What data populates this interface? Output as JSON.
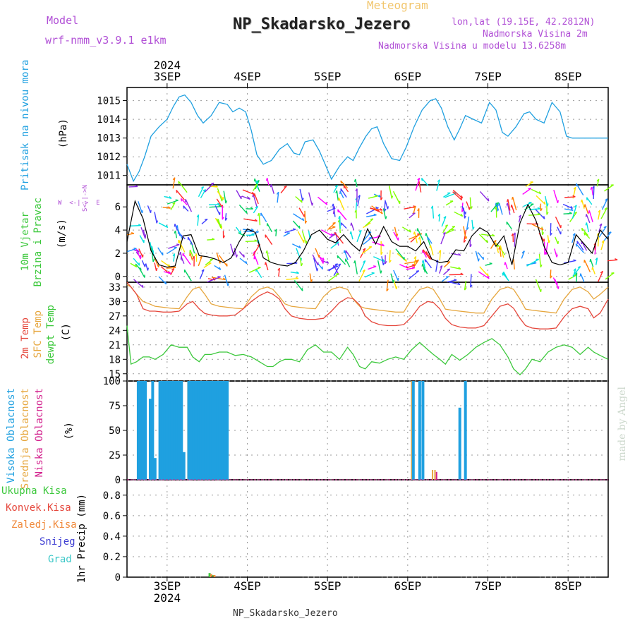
{
  "header": {
    "meteogram_label": "Meteogram",
    "model_label": "Model",
    "model_value": "wrf-nmm_v3.9.1 e1km",
    "station": "NP_Skadarsko_Jezero",
    "lonlat": "lon,lat (19.15E, 42.2812N)",
    "altitude": "Nadmorska Visina 2m",
    "model_altitude": "Nadmorska Visina u modelu 13.6258m",
    "footer_station": "NP_Skadarsko_Jezero",
    "watermark": "made by Angel"
  },
  "time_axis": {
    "year": "2024",
    "day_labels": [
      "3SEP",
      "4SEP",
      "5SEP",
      "6SEP",
      "7SEP",
      "8SEP"
    ],
    "day_positions": [
      3,
      4,
      5,
      6,
      7,
      8
    ],
    "range": [
      2.5,
      8.5
    ]
  },
  "panels": {
    "pressure": {
      "title": "Pritisak na nivou mora",
      "unit": "(hPa)",
      "color": "#1fa0e0",
      "yticks": [
        "1011",
        "1012",
        "1013",
        "1014",
        "1015"
      ]
    },
    "wind": {
      "title_line1": "10m Vjetar",
      "title_line2": "Brzina i Pravac",
      "unit": "(m/s)",
      "compass": "N  E  W  S",
      "yticks": [
        "0",
        "2",
        "4",
        "6"
      ]
    },
    "temp": {
      "t2m": "2m Temp",
      "sfc": "SFC Temp",
      "dew": "dewpt Temp",
      "unit": "(C)",
      "yticks": [
        "15",
        "18",
        "21",
        "24",
        "27",
        "30",
        "33"
      ]
    },
    "cloud": {
      "high": "Visoka Oblacnost",
      "mid": "Srednja Oblacnost",
      "low": "Niska Oblacnost",
      "unit": "(%)",
      "yticks": [
        "0",
        "25",
        "50",
        "75",
        "100"
      ]
    },
    "precip": {
      "unit": "1hr Precip (mm)",
      "yticks": [
        "0",
        "0.2",
        "0.4",
        "0.6",
        "0.8"
      ],
      "legend": [
        "Ukupna Kisa",
        "Konvek.Kisa",
        "Zaledj.Kisa",
        "Snijeg",
        "Grad"
      ]
    }
  },
  "colors": {
    "pressure": "#1fa0e0",
    "t2m": "#e5473c",
    "sfc": "#e6a63d",
    "dew": "#3cc83c",
    "high": "#1fa0e0",
    "mid": "#e6a63d",
    "low": "#d21f8c",
    "total": "#3cc83c",
    "conv": "#e5473c",
    "frz": "#f08a3c",
    "snow": "#3c3cd2",
    "grad": "#3cc8c8",
    "purple": "#b150d6"
  },
  "chart_data": [
    {
      "type": "line",
      "title": "Pritisak na nivou mora",
      "ylabel": "(hPa)",
      "ylim": [
        1010.5,
        1015.7
      ],
      "x": [
        2.5,
        2.58,
        2.65,
        2.72,
        2.8,
        2.9,
        3.0,
        3.08,
        3.15,
        3.22,
        3.3,
        3.38,
        3.45,
        3.55,
        3.65,
        3.75,
        3.82,
        3.9,
        3.98,
        4.05,
        4.12,
        4.2,
        4.3,
        4.4,
        4.5,
        4.58,
        4.65,
        4.72,
        4.82,
        4.9,
        4.97,
        5.05,
        5.15,
        5.25,
        5.32,
        5.4,
        5.48,
        5.55,
        5.62,
        5.7,
        5.8,
        5.9,
        5.98,
        6.08,
        6.18,
        6.28,
        6.35,
        6.42,
        6.5,
        6.58,
        6.65,
        6.72,
        6.82,
        6.92,
        7.02,
        7.1,
        7.18,
        7.25,
        7.35,
        7.45,
        7.52,
        7.6,
        7.7,
        7.8,
        7.9,
        7.98,
        8.05,
        8.15,
        8.22,
        8.3,
        8.4,
        8.5
      ],
      "series": [
        {
          "values": [
            1011.6,
            1010.7,
            1011.2,
            1012.0,
            1013.1,
            1013.6,
            1014.0,
            1014.7,
            1015.2,
            1015.3,
            1014.9,
            1014.2,
            1013.8,
            1014.2,
            1014.9,
            1014.8,
            1014.4,
            1014.6,
            1014.4,
            1013.4,
            1012.1,
            1011.6,
            1011.8,
            1012.4,
            1012.7,
            1012.2,
            1012.1,
            1012.8,
            1012.9,
            1012.3,
            1011.6,
            1010.8,
            1011.5,
            1012.0,
            1011.8,
            1012.5,
            1013.1,
            1013.5,
            1013.6,
            1012.7,
            1011.9,
            1011.8,
            1012.5,
            1013.6,
            1014.5,
            1015.0,
            1015.1,
            1014.6,
            1013.6,
            1012.9,
            1013.5,
            1014.2,
            1014.0,
            1013.8,
            1014.9,
            1014.5,
            1013.3,
            1013.1,
            1013.6,
            1014.3,
            1014.4,
            1014.0,
            1013.8,
            1014.9,
            1014.4,
            1013.1,
            1013.0,
            1013.0,
            1013.0,
            1013.0,
            1013.0,
            1013.0
          ]
        }
      ]
    },
    {
      "type": "line",
      "title": "10m Vjetar Brzina i Pravac",
      "ylabel": "(m/s)",
      "ylim": [
        -0.5,
        7.9
      ],
      "x": [
        2.5,
        2.6,
        2.7,
        2.8,
        2.9,
        3.0,
        3.1,
        3.2,
        3.3,
        3.4,
        3.5,
        3.6,
        3.7,
        3.8,
        3.9,
        4.0,
        4.1,
        4.2,
        4.3,
        4.4,
        4.5,
        4.6,
        4.7,
        4.8,
        4.9,
        5.0,
        5.1,
        5.2,
        5.3,
        5.4,
        5.5,
        5.6,
        5.7,
        5.8,
        5.9,
        6.0,
        6.1,
        6.2,
        6.3,
        6.4,
        6.5,
        6.6,
        6.7,
        6.8,
        6.9,
        7.0,
        7.1,
        7.2,
        7.3,
        7.4,
        7.5,
        7.6,
        7.7,
        7.8,
        7.9,
        8.0,
        8.1,
        8.2,
        8.3,
        8.4,
        8.5
      ],
      "series": [
        {
          "values": [
            3.0,
            6.5,
            5.0,
            2.2,
            1.0,
            0.8,
            0.9,
            3.5,
            3.6,
            1.8,
            1.7,
            1.5,
            1.2,
            1.6,
            3.0,
            4.1,
            3.8,
            1.6,
            1.2,
            1.0,
            0.9,
            1.2,
            2.2,
            3.6,
            4.0,
            3.2,
            2.9,
            3.6,
            2.8,
            2.2,
            4.1,
            2.8,
            4.3,
            3.0,
            2.6,
            2.6,
            2.2,
            3.0,
            1.5,
            1.2,
            1.3,
            2.3,
            2.2,
            3.5,
            4.2,
            3.8,
            2.6,
            3.5,
            1.0,
            4.6,
            6.2,
            4.8,
            2.6,
            1.2,
            1.0,
            1.2,
            3.6,
            2.8,
            2.0,
            4.0,
            3.2
          ]
        }
      ]
    },
    {
      "type": "line",
      "title": "2m Temp / SFC Temp / dewpt Temp",
      "ylabel": "(C)",
      "ylim": [
        13.5,
        34.0
      ],
      "x": [
        2.5,
        2.55,
        2.62,
        2.7,
        2.78,
        2.85,
        2.95,
        3.05,
        3.15,
        3.25,
        3.32,
        3.4,
        3.47,
        3.55,
        3.65,
        3.75,
        3.85,
        3.95,
        4.05,
        4.15,
        4.25,
        4.32,
        4.4,
        4.47,
        4.55,
        4.65,
        4.75,
        4.85,
        4.95,
        5.05,
        5.15,
        5.25,
        5.32,
        5.4,
        5.47,
        5.55,
        5.65,
        5.75,
        5.85,
        5.95,
        6.05,
        6.15,
        6.25,
        6.32,
        6.4,
        6.47,
        6.55,
        6.65,
        6.75,
        6.85,
        6.95,
        7.05,
        7.15,
        7.25,
        7.32,
        7.4,
        7.47,
        7.55,
        7.65,
        7.75,
        7.85,
        7.95,
        8.05,
        8.15,
        8.25,
        8.32,
        8.4,
        8.5
      ],
      "series": [
        {
          "name": "2m Temp",
          "values": [
            34.0,
            33.0,
            31.5,
            28.5,
            28.0,
            28.0,
            27.8,
            27.8,
            28.0,
            29.5,
            30.0,
            28.5,
            27.5,
            27.2,
            27.0,
            27.0,
            27.2,
            28.5,
            30.0,
            31.2,
            32.0,
            31.5,
            30.5,
            28.5,
            27.0,
            26.5,
            26.3,
            26.3,
            26.5,
            28.0,
            29.8,
            30.8,
            30.6,
            29.3,
            27.0,
            25.8,
            25.2,
            25.0,
            25.0,
            25.2,
            26.8,
            29.0,
            30.0,
            29.8,
            28.5,
            26.5,
            25.2,
            24.7,
            24.5,
            24.5,
            25.0,
            27.0,
            29.0,
            29.5,
            28.6,
            26.5,
            25.0,
            24.5,
            24.3,
            24.3,
            24.5,
            26.8,
            28.5,
            29.0,
            28.5,
            26.6,
            27.6,
            30.5
          ]
        },
        {
          "name": "SFC Temp",
          "values": [
            33.5,
            33.0,
            31.5,
            30.0,
            29.5,
            29.0,
            28.8,
            28.6,
            28.5,
            31.0,
            32.5,
            33.0,
            31.5,
            29.5,
            29.0,
            28.8,
            28.6,
            28.5,
            31.0,
            32.5,
            33.0,
            32.5,
            31.0,
            29.5,
            29.0,
            28.8,
            28.6,
            28.5,
            31.0,
            32.5,
            33.0,
            32.5,
            30.5,
            29.0,
            28.6,
            28.4,
            28.2,
            28.0,
            27.8,
            27.8,
            30.5,
            32.5,
            33.0,
            32.5,
            30.5,
            28.4,
            28.2,
            28.0,
            27.8,
            27.6,
            27.6,
            30.5,
            32.5,
            33.0,
            32.5,
            30.5,
            28.4,
            28.2,
            28.0,
            27.8,
            27.6,
            30.5,
            32.5,
            33.0,
            32.0,
            30.5,
            31.5,
            33.0
          ]
        },
        {
          "name": "dewpt Temp",
          "values": [
            25.0,
            17.0,
            17.5,
            18.5,
            18.5,
            18.0,
            19.0,
            21.0,
            20.5,
            20.5,
            18.5,
            17.5,
            19.0,
            19.0,
            19.5,
            19.5,
            18.8,
            19.0,
            18.5,
            17.5,
            16.5,
            16.5,
            17.5,
            18.0,
            18.0,
            17.5,
            20.0,
            21.0,
            19.5,
            19.5,
            18.0,
            20.5,
            19.0,
            16.5,
            16.0,
            17.5,
            17.2,
            18.0,
            18.5,
            18.0,
            20.0,
            21.5,
            20.0,
            19.0,
            18.0,
            17.0,
            19.0,
            17.8,
            19.0,
            20.5,
            21.5,
            22.3,
            21.0,
            18.5,
            16.0,
            14.8,
            16.0,
            18.0,
            17.5,
            19.5,
            20.5,
            21.0,
            20.5,
            19.0,
            20.5,
            19.5,
            18.8,
            18.0
          ]
        }
      ]
    },
    {
      "type": "bar",
      "title": "Visoka / Srednja / Niska Oblacnost",
      "ylabel": "(%)",
      "ylim": [
        0,
        100
      ],
      "series": [
        {
          "name": "Visoka Oblacnost",
          "x": [
            2.64,
            2.67,
            2.7,
            2.73,
            2.79,
            2.82,
            2.85,
            2.91,
            2.94,
            2.97,
            3.0,
            3.03,
            3.06,
            3.09,
            3.12,
            3.15,
            3.18,
            3.21,
            3.27,
            3.3,
            3.33,
            3.36,
            3.39,
            3.42,
            3.45,
            3.48,
            3.51,
            3.54,
            3.57,
            3.6,
            3.63,
            3.66,
            3.69,
            3.72,
            3.75,
            6.07,
            6.15,
            6.19,
            6.65,
            6.72
          ],
          "values": [
            100,
            100,
            100,
            100,
            82,
            100,
            22,
            100,
            100,
            100,
            100,
            100,
            100,
            100,
            100,
            100,
            100,
            28,
            100,
            100,
            100,
            100,
            100,
            100,
            100,
            100,
            100,
            100,
            100,
            100,
            100,
            100,
            100,
            100,
            100,
            100,
            100,
            100,
            73,
            100
          ]
        },
        {
          "name": "Srednja Oblacnost",
          "x": [
            3.26,
            3.29,
            3.32,
            3.35,
            3.38,
            3.44,
            3.47,
            3.53,
            3.56,
            3.62,
            6.05,
            6.31,
            6.34
          ],
          "values": [
            100,
            100,
            100,
            100,
            100,
            100,
            100,
            100,
            100,
            100,
            100,
            10,
            10
          ]
        },
        {
          "name": "Niska Oblacnost",
          "x": [
            6.36
          ],
          "values": [
            8
          ]
        }
      ]
    },
    {
      "type": "bar",
      "title": "1hr Precip",
      "ylabel": "1hr Precip (mm)",
      "ylim": [
        0,
        0.95
      ],
      "series": [
        {
          "name": "Ukupna Kisa",
          "x": [
            3.53,
            3.57
          ],
          "values": [
            0.04,
            0.02
          ]
        },
        {
          "name": "Zaledj.Kisa",
          "x": [
            3.55,
            3.59
          ],
          "values": [
            0.03,
            0.02
          ]
        }
      ]
    }
  ]
}
